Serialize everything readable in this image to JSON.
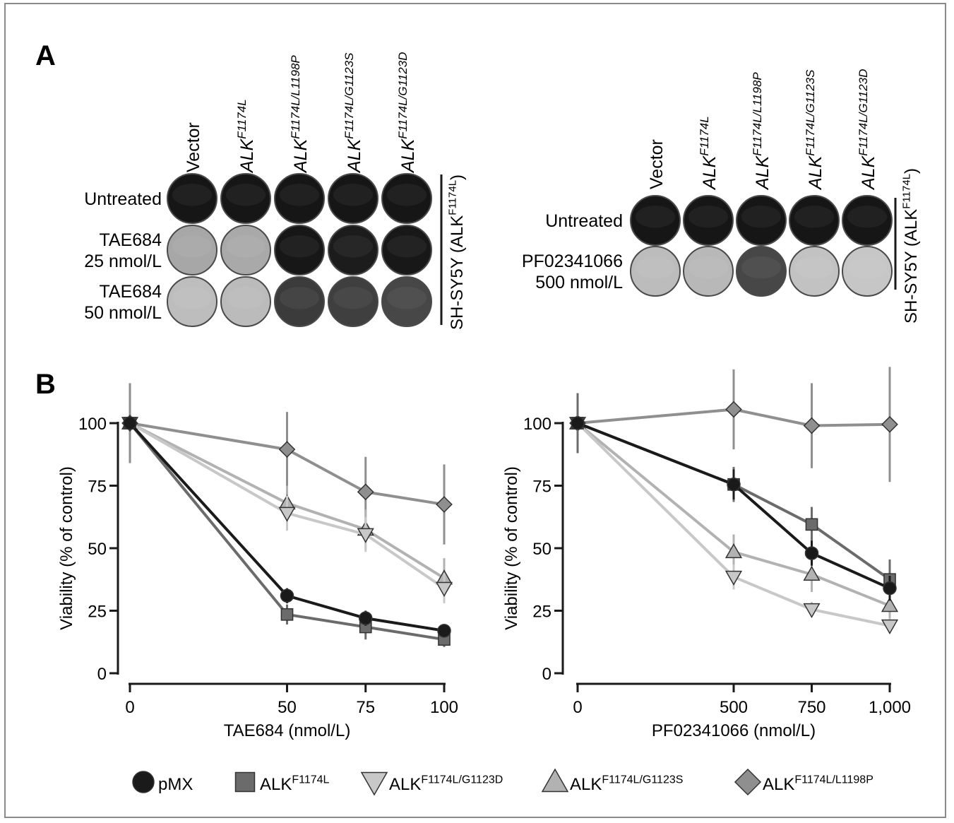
{
  "panel_a": {
    "label": "A",
    "left": {
      "columns": [
        {
          "base": "Vector",
          "sup": ""
        },
        {
          "base": "ALK",
          "sup": "F1174L"
        },
        {
          "base": "ALK",
          "sup": "F1174L/L1198P"
        },
        {
          "base": "ALK",
          "sup": "F1174L/G1123S"
        },
        {
          "base": "ALK",
          "sup": "F1174L/G1123D"
        }
      ],
      "rows": [
        {
          "lines": [
            "Untreated"
          ],
          "shades": [
            "#161616",
            "#161616",
            "#161616",
            "#161616",
            "#161616"
          ]
        },
        {
          "lines": [
            "TAE684",
            "25 nmol/L"
          ],
          "shades": [
            "#a7a7a7",
            "#a9a9a9",
            "#171717",
            "#1c1c1c",
            "#181818"
          ]
        },
        {
          "lines": [
            "TAE684",
            "50 nmol/L"
          ],
          "shades": [
            "#bdbdbd",
            "#bbbbbb",
            "#3b3b3b",
            "#3f3f3f",
            "#474747"
          ]
        }
      ],
      "cell_line": {
        "base": "SH-SY5Y (ALK",
        "sup": "F1174L",
        "close": ")"
      }
    },
    "right": {
      "columns": [
        {
          "base": "Vector",
          "sup": ""
        },
        {
          "base": "ALK",
          "sup": "F1174L"
        },
        {
          "base": "ALK",
          "sup": "F1174L/L1198P"
        },
        {
          "base": "ALK",
          "sup": "F1174L/G1123S"
        },
        {
          "base": "ALK",
          "sup": "F1174L/G1123D"
        }
      ],
      "rows": [
        {
          "lines": [
            "Untreated"
          ],
          "shades": [
            "#161616",
            "#161616",
            "#161616",
            "#161616",
            "#161616"
          ]
        },
        {
          "lines": [
            "PF02341066",
            "500 nmol/L"
          ],
          "shades": [
            "#bcbcbc",
            "#b8b8b8",
            "#474747",
            "#c2c2c2",
            "#c6c6c6"
          ]
        }
      ],
      "cell_line": {
        "base": "SH-SY5Y (ALK",
        "sup": "F1174L",
        "close": ")"
      }
    }
  },
  "panel_b_label": "B",
  "chart_data": [
    {
      "type": "line",
      "xlabel": "TAE684 (nmol/L)",
      "ylabel": "Viability (% of control)",
      "x": [
        0,
        50,
        75,
        100
      ],
      "x_tick_labels": [
        "0",
        "50",
        "75",
        "100"
      ],
      "ylim": [
        0,
        100
      ],
      "y_ticks": [
        0,
        25,
        50,
        75,
        100
      ],
      "series": [
        {
          "key": "pmx",
          "values": [
            100,
            31,
            22,
            17
          ],
          "errors": [
            0,
            3,
            3,
            2
          ]
        },
        {
          "key": "f1174l",
          "values": [
            100,
            23.5,
            18.5,
            13.5
          ],
          "errors": [
            0,
            4,
            5,
            3
          ]
        },
        {
          "key": "g1123d",
          "values": [
            100,
            64,
            55.5,
            34
          ],
          "errors": [
            0,
            7,
            7,
            6
          ]
        },
        {
          "key": "g1123s",
          "values": [
            100,
            68,
            57.5,
            38
          ],
          "errors": [
            0,
            7,
            8,
            8
          ]
        },
        {
          "key": "l1198p",
          "values": [
            100,
            89.5,
            72.5,
            67.5
          ],
          "errors": [
            16,
            15,
            14,
            16
          ]
        }
      ]
    },
    {
      "type": "line",
      "xlabel": "PF02341066 (nmol/L)",
      "ylabel": "Viability (% of control)",
      "x": [
        0,
        500,
        750,
        1000
      ],
      "x_tick_labels": [
        "0",
        "500",
        "750",
        "1,000"
      ],
      "ylim": [
        0,
        100
      ],
      "y_ticks": [
        0,
        25,
        50,
        75,
        100
      ],
      "series": [
        {
          "key": "pmx",
          "values": [
            100,
            75.5,
            48,
            34
          ],
          "errors": [
            0,
            6,
            5,
            5
          ]
        },
        {
          "key": "f1174l",
          "values": [
            100,
            75.5,
            59.5,
            37.5
          ],
          "errors": [
            12,
            7,
            7,
            8
          ]
        },
        {
          "key": "g1123d",
          "values": [
            100,
            38.5,
            25.5,
            19
          ],
          "errors": [
            0,
            5,
            3,
            3
          ]
        },
        {
          "key": "g1123s",
          "values": [
            100,
            48.5,
            39.5,
            27
          ],
          "errors": [
            0,
            7,
            7,
            6
          ]
        },
        {
          "key": "l1198p",
          "values": [
            100,
            105.5,
            99,
            99.5
          ],
          "errors": [
            12,
            16,
            17,
            23
          ]
        }
      ]
    }
  ],
  "legend": [
    {
      "key": "pmx",
      "marker": "circle",
      "color": "#1a1a1a",
      "base": "pMX",
      "sup": ""
    },
    {
      "key": "f1174l",
      "marker": "square",
      "color": "#6b6b6b",
      "base": "ALK",
      "sup": "F1174L"
    },
    {
      "key": "g1123d",
      "marker": "triangle-down",
      "color": "#c8c8c8",
      "base": "ALK",
      "sup": "F1174L/G1123D"
    },
    {
      "key": "g1123s",
      "marker": "triangle-up",
      "color": "#b2b2b2",
      "base": "ALK",
      "sup": "F1174L/G1123S"
    },
    {
      "key": "l1198p",
      "marker": "diamond",
      "color": "#8f8f8f",
      "base": "ALK",
      "sup": "F1174L/L1198P"
    }
  ]
}
